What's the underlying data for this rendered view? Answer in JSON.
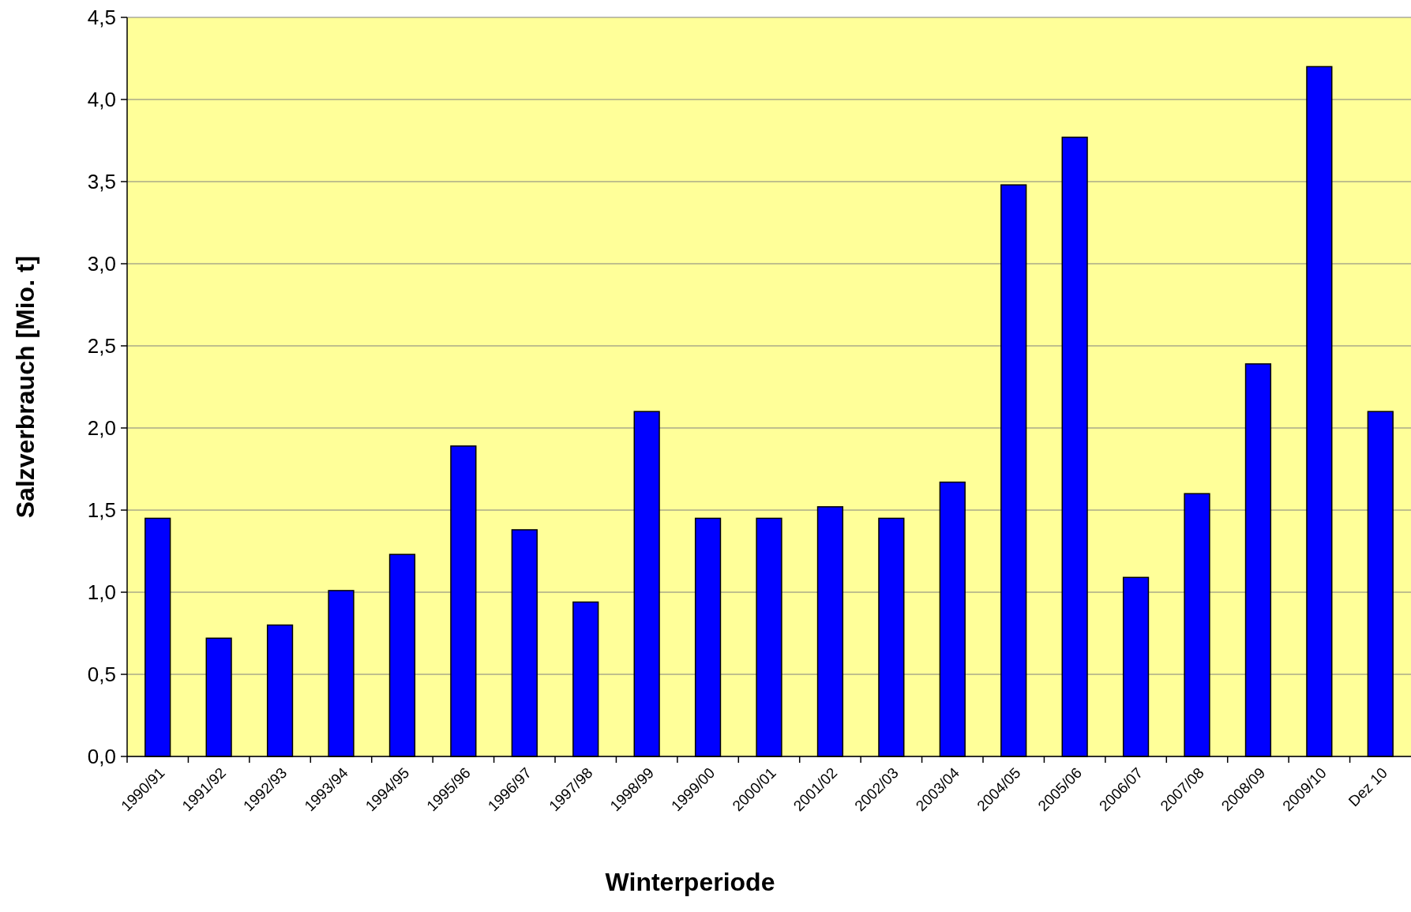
{
  "chart_data": {
    "type": "bar",
    "xlabel": "Winterperiode",
    "ylabel": "Salzverbrauch [Mio. t]",
    "categories": [
      "1990/91",
      "1991/92",
      "1992/93",
      "1993/94",
      "1994/95",
      "1995/96",
      "1996/97",
      "1997/98",
      "1998/99",
      "1999/00",
      "2000/01",
      "2001/02",
      "2002/03",
      "2003/04",
      "2004/05",
      "2005/06",
      "2006/07",
      "2007/08",
      "2008/09",
      "2009/10",
      "Dez 10"
    ],
    "values": [
      1.45,
      0.72,
      0.8,
      1.01,
      1.23,
      1.89,
      1.38,
      0.94,
      2.1,
      1.45,
      1.45,
      1.52,
      1.45,
      1.67,
      3.48,
      3.77,
      1.09,
      1.6,
      2.39,
      4.2,
      2.1
    ],
    "color": "#0000ff",
    "ylim": [
      0,
      4.5
    ],
    "yticks": [
      {
        "value": 0,
        "label": "0,0"
      },
      {
        "value": 0.5,
        "label": "0,5"
      },
      {
        "value": 1,
        "label": "1,0"
      },
      {
        "value": 1.5,
        "label": "1,5"
      },
      {
        "value": 2,
        "label": "2,0"
      },
      {
        "value": 2.5,
        "label": "2,5"
      },
      {
        "value": 3,
        "label": "3,0"
      },
      {
        "value": 3.5,
        "label": "3,5"
      },
      {
        "value": 4,
        "label": "4,0"
      },
      {
        "value": 4.5,
        "label": "4,5"
      }
    ],
    "grid": "y"
  }
}
